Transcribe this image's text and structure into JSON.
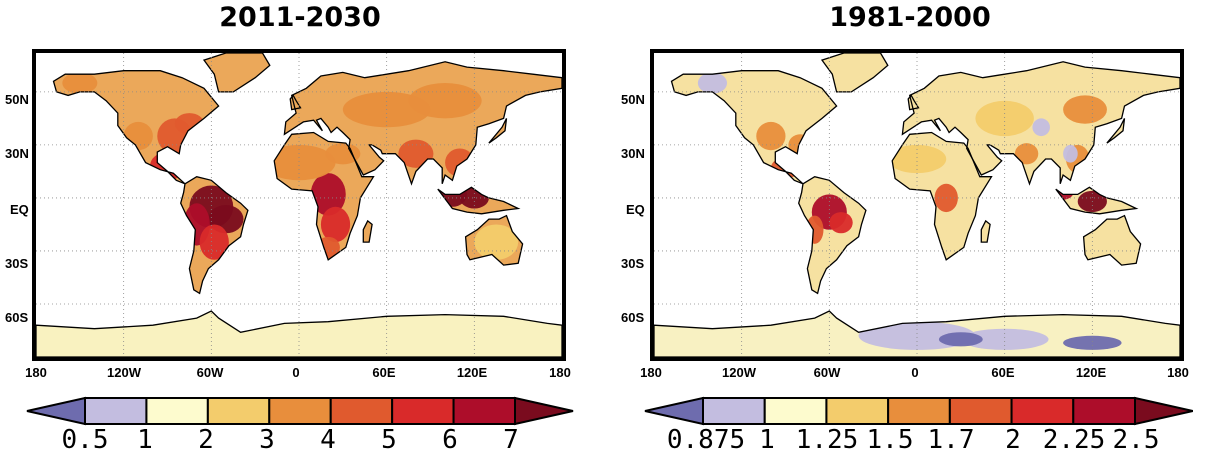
{
  "colors": {
    "below_min": "#6e6cae",
    "levels": [
      "#c3bde0",
      "#fdfbce",
      "#f3cc6c",
      "#e88e3c",
      "#e05a2e",
      "#d92a2a",
      "#ad0d2a",
      "#7a0b1e"
    ],
    "land_left": "#eba85a",
    "land_right": "#f6e1a1",
    "antarctica_left": "#f9f2c0",
    "antarctica_right": "#f8f1c2",
    "frame": "#000000"
  },
  "panels": [
    {
      "title": "2011-2030",
      "lat_labels": [
        "50N",
        "30N",
        "EQ",
        "30S",
        "60S"
      ],
      "lon_labels": [
        "180",
        "120W",
        "60W",
        "0",
        "60E",
        "120E",
        "180"
      ],
      "colorbar_labels": [
        "0.5",
        "1",
        "2",
        "3",
        "4",
        "5",
        "6",
        "7"
      ]
    },
    {
      "title": "1981-2000",
      "lat_labels": [
        "50N",
        "30N",
        "EQ",
        "30S",
        "60S"
      ],
      "lon_labels": [
        "180",
        "120W",
        "60W",
        "0",
        "60E",
        "120E",
        "180"
      ],
      "colorbar_labels": [
        "0.875",
        "1",
        "1.25",
        "1.5",
        "1.7",
        "2",
        "2.25",
        "2.5"
      ]
    }
  ],
  "chart_data": [
    {
      "type": "heatmap",
      "title": "2011-2030",
      "map_projection": "equirectangular global",
      "lon_ticks": [
        "180",
        "120W",
        "60W",
        "0",
        "60E",
        "120E",
        "180"
      ],
      "lat_ticks": [
        "50N",
        "30N",
        "EQ",
        "30S",
        "60S"
      ],
      "colorbar_levels": [
        0.5,
        1,
        2,
        3,
        4,
        5,
        6,
        7
      ],
      "colorbar_extends": "both",
      "grid": "dotted",
      "region_values": [
        {
          "region": "Amazon basin",
          "level": ">7"
        },
        {
          "region": "Maritime Continent",
          "level": "6-7"
        },
        {
          "region": "Central America",
          "level": "5-6"
        },
        {
          "region": "Eastern North America",
          "level": "4-5"
        },
        {
          "region": "Sahara / Middle East",
          "level": "4-5"
        },
        {
          "region": "Central Africa",
          "level": "5-6"
        },
        {
          "region": "Northern Eurasia",
          "level": "3-4"
        },
        {
          "region": "Australia",
          "level": "2-3"
        },
        {
          "region": "Antarctica",
          "level": "1-2"
        }
      ]
    },
    {
      "type": "heatmap",
      "title": "1981-2000",
      "map_projection": "equirectangular global",
      "lon_ticks": [
        "180",
        "120W",
        "60W",
        "0",
        "60E",
        "120E",
        "180"
      ],
      "lat_ticks": [
        "50N",
        "30N",
        "EQ",
        "30S",
        "60S"
      ],
      "colorbar_levels": [
        0.875,
        1,
        1.25,
        1.5,
        1.7,
        2,
        2.25,
        2.5
      ],
      "colorbar_extends": "both",
      "grid": "dotted",
      "region_values": [
        {
          "region": "Amazon basin",
          "level": "2-2.25"
        },
        {
          "region": "Maritime Continent",
          "level": "2.25-2.5"
        },
        {
          "region": "Central America",
          "level": "1.7-2"
        },
        {
          "region": "Sahara / Middle East",
          "level": "1.25-1.5"
        },
        {
          "region": "Northern Eurasia",
          "level": "1-1.25"
        },
        {
          "region": "Antarctica interior",
          "level": "<0.875"
        },
        {
          "region": "Australia",
          "level": "1-1.25"
        }
      ]
    }
  ]
}
